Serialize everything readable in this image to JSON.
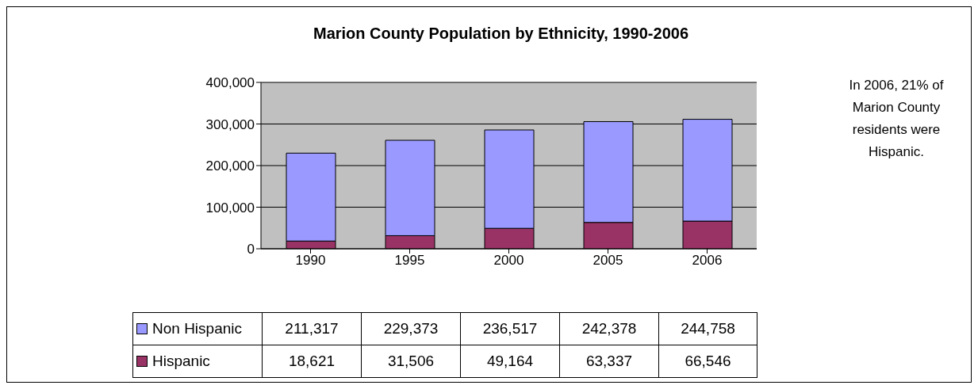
{
  "chart_data": {
    "type": "bar",
    "title": "Marion County Population by Ethnicity, 1990-2006",
    "categories": [
      "1990",
      "1995",
      "2000",
      "2005",
      "2006"
    ],
    "series": [
      {
        "name": "Hispanic",
        "color": "#993366",
        "values": [
          18621,
          31506,
          49164,
          63337,
          66546
        ],
        "value_labels": [
          "18,621",
          "31,506",
          "49,164",
          "63,337",
          "66,546"
        ]
      },
      {
        "name": "Non Hispanic",
        "color": "#9999ff",
        "values": [
          211317,
          229373,
          236517,
          242378,
          244758
        ],
        "value_labels": [
          "211,317",
          "229,373",
          "236,517",
          "242,378",
          "244,758"
        ]
      }
    ],
    "stacked": true,
    "ylim": [
      0,
      400000
    ],
    "yticks": [
      0,
      {
        "value": 100000,
        "label": "100,000"
      },
      {
        "value": 200000,
        "label": "200,000"
      },
      {
        "value": 300000,
        "label": "300,000"
      },
      {
        "value": 400000,
        "label": "400,000"
      }
    ],
    "grid": "y",
    "legend": "bottom left",
    "annotations": [
      "In 2006, 21% of Marion County residents were Hispanic."
    ]
  }
}
